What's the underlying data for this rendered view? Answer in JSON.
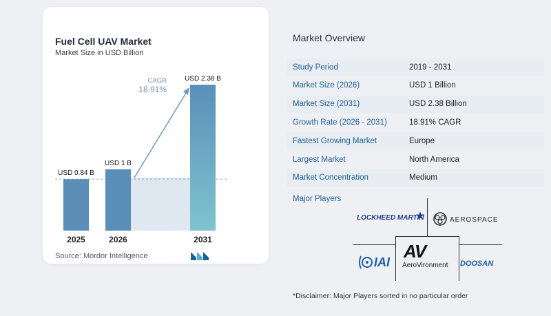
{
  "chart_data": {
    "type": "bar",
    "title": "Fuel Cell UAV Market",
    "subtitle": "Market Size in USD Billion",
    "categories": [
      "2025",
      "2026",
      "2031"
    ],
    "values": [
      0.84,
      1.0,
      2.38
    ],
    "data_labels": [
      "USD 0.84 B",
      "USD 1 B",
      "USD 2.38 B"
    ],
    "annotation": {
      "label": "CAGR",
      "value": "18.91%"
    },
    "colors": {
      "bar_dark": "#5b8fb8",
      "bar_light": "#7fc4cf",
      "band": "#dfe8f0",
      "arrow": "#6b9ac2"
    },
    "xlabel": "",
    "ylabel": ""
  },
  "source": "Source:  Mordor Intelligence",
  "overview": {
    "title": "Market Overview",
    "rows": [
      {
        "label": "Study Period",
        "value": "2019 - 2031"
      },
      {
        "label": "Market Size (2026)",
        "value": "USD 1 Billion"
      },
      {
        "label": "Market Size (2031)",
        "value": "USD 2.38 Billion"
      },
      {
        "label": "Growth Rate (2026 - 2031)",
        "value": "18.91% CAGR"
      },
      {
        "label": "Fastest Growing Market",
        "value": "Europe"
      },
      {
        "label": "Largest Market",
        "value": "North America"
      },
      {
        "label": "Market Concentration",
        "value": "Medium"
      }
    ]
  },
  "players": {
    "title": "Major Players",
    "logos": [
      "LOCKHEED MARTIN",
      "AEROSPACE",
      "IAI",
      "AV",
      "AeroVironment",
      "DOOSAN"
    ]
  },
  "disclaimer": "*Disclaimer: Major Players sorted in no particular order"
}
